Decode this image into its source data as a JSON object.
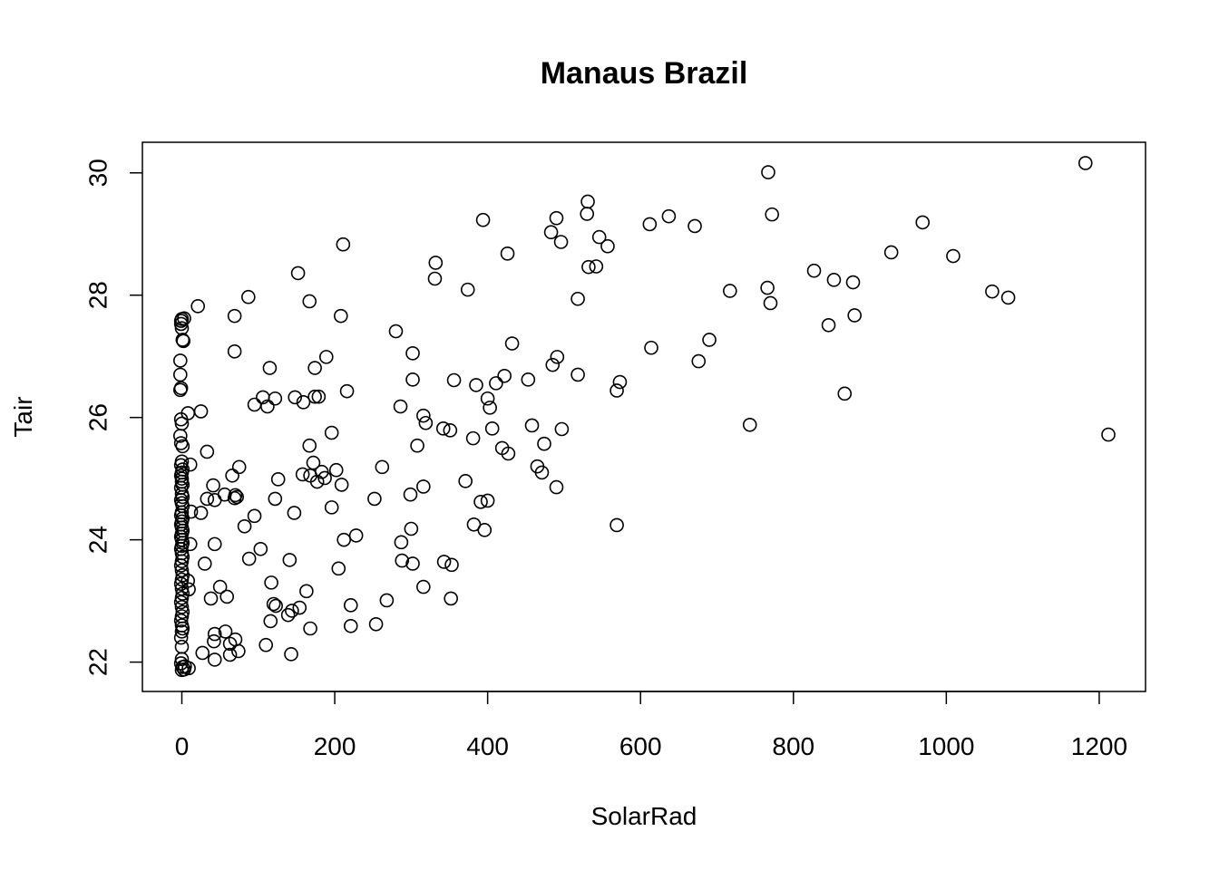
{
  "chart_data": {
    "type": "scatter",
    "title": "Manaus Brazil",
    "x_label": "SolarRad",
    "y_label": "Tair",
    "color": "#000000",
    "xlim": [
      -51.6,
      1260.6
    ],
    "ylim": [
      21.52,
      30.5
    ],
    "xticks": [
      0,
      200,
      400,
      600,
      800,
      1000,
      1200
    ],
    "yticks": [
      22,
      24,
      26,
      28,
      30
    ],
    "x": [
      1182,
      1212,
      767,
      772,
      969,
      928,
      1009,
      827,
      853,
      878,
      766,
      717,
      1060,
      1081,
      770,
      880,
      846,
      690,
      614,
      676,
      867,
      743,
      569,
      573,
      569,
      531,
      530,
      394,
      490,
      637,
      612,
      671,
      483,
      546,
      496,
      557,
      426,
      332,
      532,
      542,
      331,
      374,
      518,
      432,
      491,
      485,
      518,
      422,
      453,
      411,
      385,
      356,
      400,
      403,
      406,
      458,
      497,
      474,
      419,
      427,
      465,
      471,
      490,
      400,
      391,
      382,
      396,
      371,
      381,
      316,
      319,
      342,
      351,
      211,
      152,
      167,
      87,
      208,
      280,
      302,
      189,
      174,
      115,
      302,
      216,
      286,
      148,
      174,
      179,
      159,
      122,
      106,
      95,
      112,
      196,
      308,
      167,
      202,
      262,
      172,
      183,
      158,
      168,
      177,
      187,
      209,
      316,
      299,
      252,
      196,
      147,
      122,
      126,
      300,
      228,
      212,
      287,
      288,
      302,
      343,
      353,
      141,
      205,
      117,
      316,
      163,
      352,
      268,
      221,
      120,
      123,
      154,
      144,
      139,
      116,
      168,
      221,
      254,
      110,
      143,
      21,
      69,
      69,
      8,
      25,
      33,
      75,
      11,
      66,
      41,
      56,
      70,
      72,
      69,
      33,
      43,
      12,
      25,
      95,
      82,
      103,
      43,
      11,
      30,
      88,
      50,
      59,
      38,
      9,
      8,
      57,
      43,
      42,
      70,
      63,
      27,
      74,
      63,
      43,
      9,
      4,
      0,
      -1,
      -1,
      0,
      1,
      -2,
      -2,
      -1,
      -2,
      -1,
      0,
      -2,
      -1,
      1,
      0,
      -1,
      1,
      0,
      -1,
      0,
      0,
      1,
      -1,
      0,
      1,
      -1,
      0,
      1,
      0,
      -1,
      1,
      0,
      -1,
      0,
      1,
      0,
      -1,
      0,
      1,
      0,
      -1,
      0,
      1,
      0,
      -1,
      0,
      1,
      0,
      -1,
      0,
      1,
      0,
      -1,
      0,
      1,
      0,
      -1,
      0,
      1,
      0,
      -1,
      0,
      0,
      -1,
      1,
      3,
      0,
      3,
      2
    ],
    "y": [
      30.16,
      25.72,
      30.01,
      29.32,
      29.19,
      28.7,
      28.64,
      28.4,
      28.25,
      28.21,
      28.12,
      28.07,
      28.06,
      27.96,
      27.87,
      27.67,
      27.51,
      27.27,
      27.14,
      26.92,
      26.39,
      25.88,
      24.24,
      26.58,
      26.44,
      29.53,
      29.33,
      29.23,
      29.26,
      29.29,
      29.16,
      29.13,
      29.03,
      28.95,
      28.87,
      28.8,
      28.68,
      28.53,
      28.46,
      28.47,
      28.27,
      28.09,
      27.94,
      27.21,
      26.99,
      26.86,
      26.7,
      26.68,
      26.62,
      26.56,
      26.53,
      26.61,
      26.31,
      26.16,
      25.82,
      25.87,
      25.81,
      25.57,
      25.5,
      25.41,
      25.2,
      25.1,
      24.86,
      24.64,
      24.62,
      24.25,
      24.16,
      24.96,
      25.66,
      26.03,
      25.91,
      25.82,
      25.79,
      28.83,
      28.36,
      27.9,
      27.97,
      27.66,
      27.41,
      27.05,
      26.99,
      26.81,
      26.81,
      26.62,
      26.43,
      26.18,
      26.33,
      26.34,
      26.34,
      26.25,
      26.31,
      26.33,
      26.21,
      26.18,
      25.75,
      25.54,
      25.54,
      25.14,
      25.19,
      25.26,
      25.11,
      25.07,
      25.05,
      24.95,
      25.01,
      24.9,
      24.87,
      24.74,
      24.67,
      24.53,
      24.44,
      24.67,
      24.99,
      24.18,
      24.07,
      24.0,
      23.96,
      23.66,
      23.61,
      23.64,
      23.59,
      23.67,
      23.53,
      23.3,
      23.23,
      23.16,
      23.04,
      23.01,
      22.93,
      22.95,
      22.92,
      22.89,
      22.84,
      22.77,
      22.67,
      22.55,
      22.59,
      22.62,
      22.28,
      22.13,
      27.82,
      27.66,
      27.08,
      26.07,
      26.1,
      25.44,
      25.19,
      25.23,
      25.05,
      24.89,
      24.74,
      24.73,
      24.7,
      24.68,
      24.67,
      24.65,
      24.46,
      24.44,
      24.39,
      24.22,
      23.85,
      23.93,
      23.93,
      23.61,
      23.69,
      23.23,
      23.07,
      23.04,
      23.19,
      23.33,
      22.5,
      22.46,
      22.34,
      22.37,
      22.3,
      22.15,
      22.18,
      22.12,
      22.04,
      21.9,
      21.93,
      27.61,
      27.58,
      27.53,
      27.46,
      27.27,
      26.93,
      26.7,
      26.48,
      26.45,
      25.97,
      25.9,
      25.7,
      25.58,
      25.53,
      25.28,
      25.22,
      25.15,
      25.1,
      25.05,
      25.0,
      24.95,
      24.9,
      24.85,
      24.75,
      24.7,
      24.65,
      24.6,
      24.55,
      24.45,
      24.4,
      24.35,
      24.3,
      24.25,
      24.2,
      24.15,
      24.1,
      24.05,
      24.0,
      23.95,
      23.9,
      23.85,
      23.78,
      23.72,
      23.65,
      23.58,
      23.5,
      23.42,
      23.35,
      23.28,
      23.2,
      23.12,
      23.05,
      22.98,
      22.9,
      22.82,
      22.75,
      22.68,
      22.6,
      22.55,
      22.5,
      22.4,
      22.25,
      22.05,
      21.98,
      21.92,
      21.88,
      21.87,
      27.62,
      27.25
    ]
  }
}
